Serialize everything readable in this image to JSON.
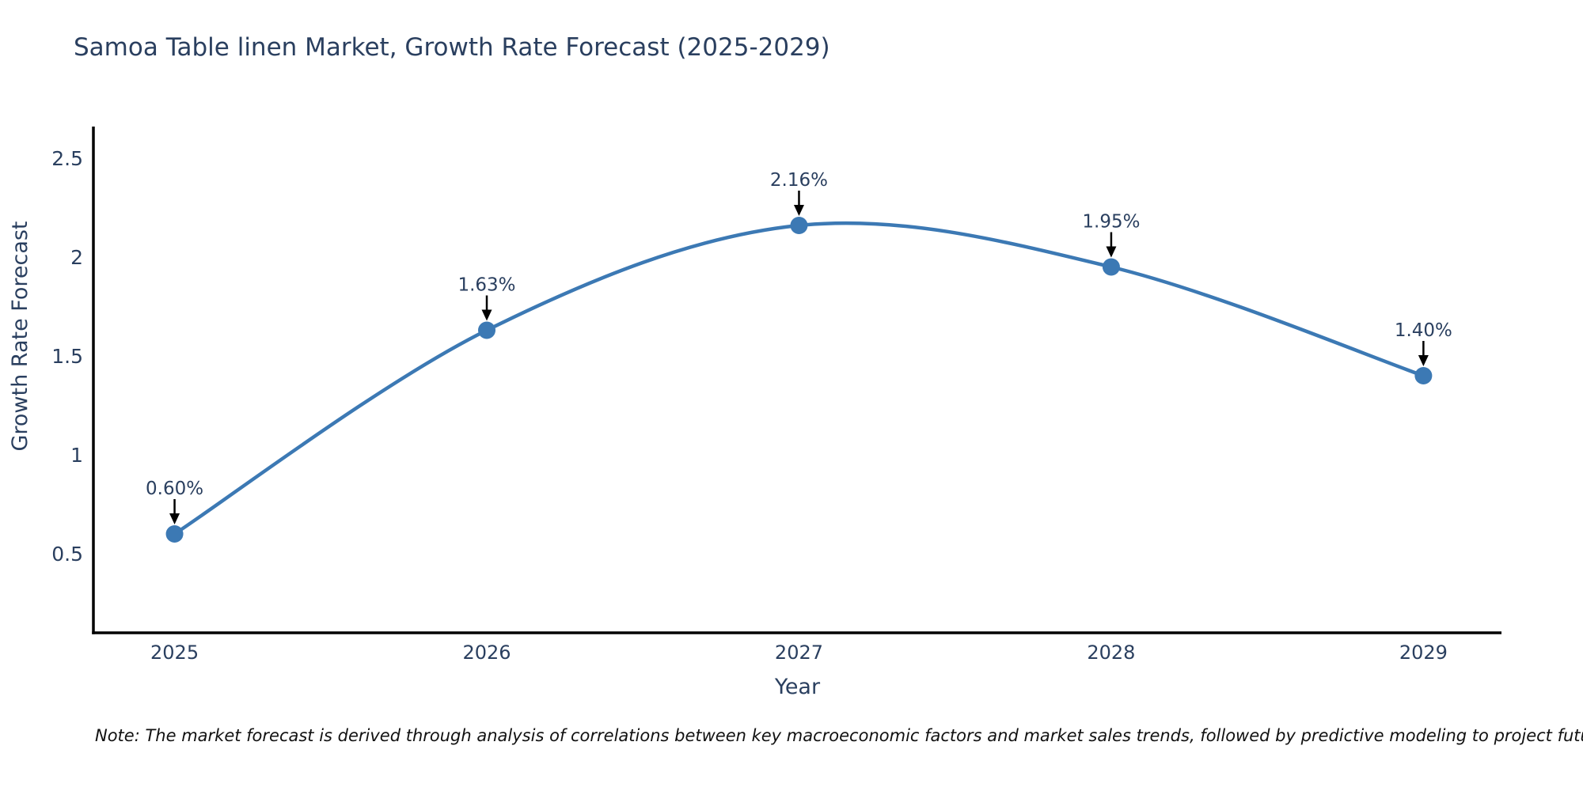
{
  "note": "Note: The market forecast is derived through analysis of correlations between key macroeconomic factors and market sales trends, followed by predictive modeling to project future sales",
  "chart_data": {
    "type": "line",
    "title": "Samoa Table linen Market, Growth Rate Forecast (2025-2029)",
    "xlabel": "Year",
    "ylabel": "Growth Rate Forecast",
    "x": [
      2025,
      2026,
      2027,
      2028,
      2029
    ],
    "values": [
      0.6,
      1.63,
      2.16,
      1.95,
      1.4
    ],
    "point_labels": [
      "0.60%",
      "1.63%",
      "2.16%",
      "1.95%",
      "1.40%"
    ],
    "yticks": [
      "0.5",
      "1",
      "1.5",
      "2",
      "2.5"
    ],
    "ytick_values": [
      0.5,
      1,
      1.5,
      2,
      2.5
    ],
    "xlim": [
      2024.74,
      2029.25
    ],
    "ylim": [
      0.1,
      2.66
    ],
    "line_shape": "spline",
    "grid": false,
    "legend": "none",
    "markers": true,
    "annotations": "percent value labels with black down-arrows above each data point",
    "colors": {
      "line": "#3c79b4",
      "marker": "#3c79b4",
      "axis": "#000000",
      "tick_text": "#2a3f5f",
      "annotation_text": "#2a3f5f",
      "arrow": "#000000",
      "title_text": "#2a3f5f",
      "note_text": "#111111",
      "background": "#ffffff"
    }
  }
}
